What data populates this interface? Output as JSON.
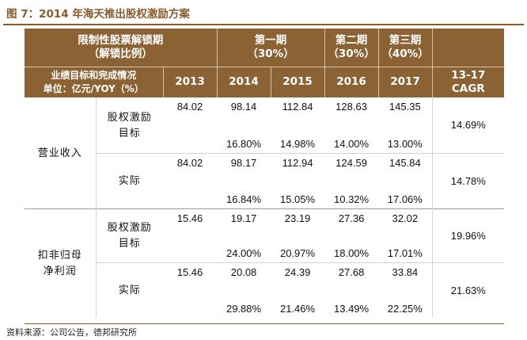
{
  "title": "图 7：2014 年海天推出股权激励方案",
  "header": {
    "lock_label_1": "限制性股票解锁期",
    "lock_label_2": "（解锁比例）",
    "period1_name": "第一期",
    "period1_pct": "（30%）",
    "period2_name": "第二期",
    "period2_pct": "（30%）",
    "period3_name": "第三期",
    "period3_pct": "（40%）",
    "unit_label_1": "业绩目标和完成情况",
    "unit_label_2": "单位：亿元/YOY（%）",
    "years": [
      "2013",
      "2014",
      "2015",
      "2016",
      "2017"
    ],
    "cagr_1": "13-17",
    "cagr_2": "CAGR"
  },
  "groups": [
    {
      "name": "营业收入",
      "rows": [
        {
          "label_1": "股权激励",
          "label_2": "目标",
          "values": [
            "84.02",
            "98.14",
            "112.84",
            "128.63",
            "145.35"
          ],
          "yoy": [
            "",
            "16.80%",
            "14.98%",
            "14.00%",
            "13.00%"
          ],
          "cagr": "14.69%"
        },
        {
          "label_1": "实际",
          "label_2": "",
          "values": [
            "84.02",
            "98.17",
            "112.94",
            "124.59",
            "145.84"
          ],
          "yoy": [
            "",
            "16.84%",
            "15.05%",
            "10.32%",
            "17.06%"
          ],
          "cagr": "14.78%"
        }
      ]
    },
    {
      "name_1": "扣非归母",
      "name_2": "净利润",
      "rows": [
        {
          "label_1": "股权激励",
          "label_2": "目标",
          "values": [
            "15.46",
            "19.17",
            "23.19",
            "27.36",
            "32.02"
          ],
          "yoy": [
            "",
            "24.00%",
            "20.97%",
            "18.00%",
            "17.01%"
          ],
          "cagr": "19.96%"
        },
        {
          "label_1": "实际",
          "label_2": "",
          "values": [
            "15.46",
            "20.08",
            "24.39",
            "27.68",
            "33.84"
          ],
          "yoy": [
            "",
            "29.88%",
            "21.46%",
            "13.49%",
            "22.25%"
          ],
          "cagr": "21.63%"
        }
      ]
    }
  ],
  "source": "资料来源：公司公告，德邦研究所"
}
